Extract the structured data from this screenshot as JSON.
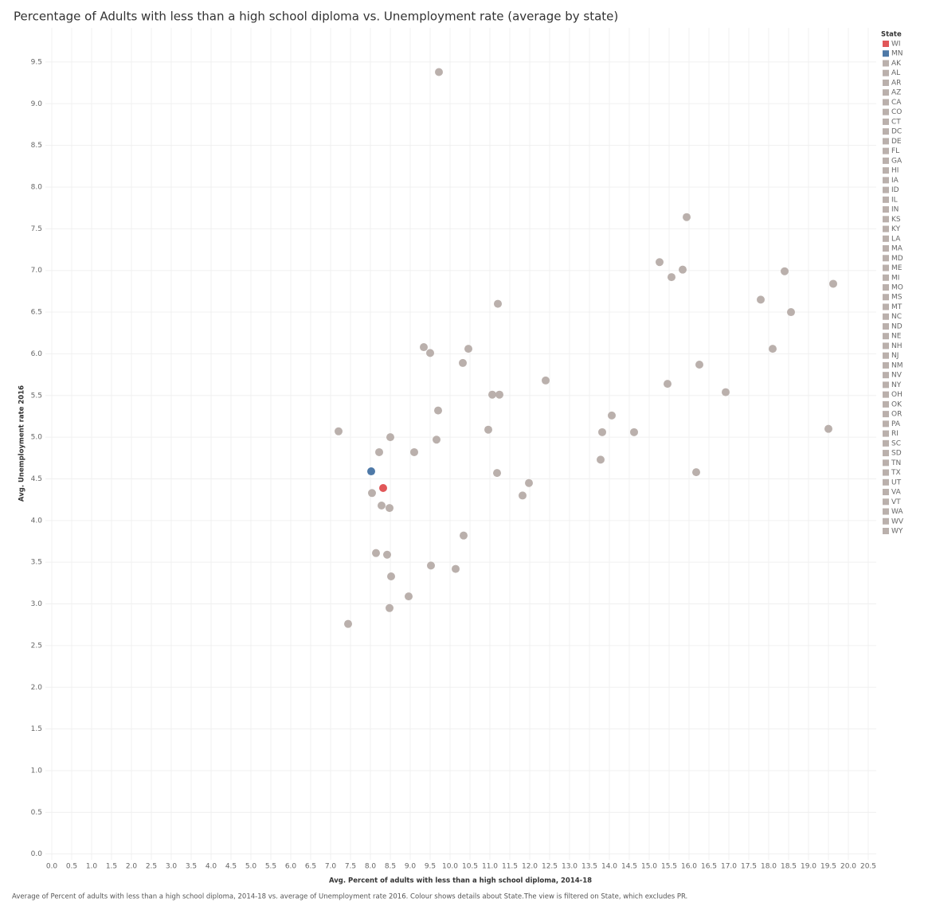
{
  "chart_data": {
    "type": "scatter",
    "title": "Percentage of Adults with less than a high school diploma vs. Unemployment rate (average by state)",
    "x_label": "Avg. Percent of adults with less than a high school diploma, 2014-18",
    "y_label": "Avg. Unemployment rate 2016",
    "footnote": "Average of Percent of adults with less than a high school diploma, 2014-18 vs. average of Unemployment rate 2016. Colour shows details about State.The view is filtered on State, which excludes PR.",
    "legend_title": "State",
    "legend_position": "right",
    "grid": true,
    "xlim": [
      -0.16,
      20.7
    ],
    "ylim": [
      -0.07,
      9.91
    ],
    "xticks": [
      {
        "value": 0,
        "label": "0.0"
      },
      0.5,
      {
        "value": 1,
        "label": "1.0"
      },
      1.5,
      {
        "value": 2,
        "label": "2.0"
      },
      2.5,
      {
        "value": 3,
        "label": "3.0"
      },
      3.5,
      {
        "value": 4,
        "label": "4.0"
      },
      4.5,
      {
        "value": 5,
        "label": "5.0"
      },
      5.5,
      {
        "value": 6,
        "label": "6.0"
      },
      6.5,
      {
        "value": 7,
        "label": "7.0"
      },
      7.5,
      {
        "value": 8,
        "label": "8.0"
      },
      8.5,
      {
        "value": 9,
        "label": "9.0"
      },
      9.5,
      {
        "value": 10,
        "label": "10.0"
      },
      10.5,
      {
        "value": 11,
        "label": "11.0"
      },
      11.5,
      {
        "value": 12,
        "label": "12.0"
      },
      12.5,
      {
        "value": 13,
        "label": "13.0"
      },
      13.5,
      {
        "value": 14,
        "label": "14.0"
      },
      14.5,
      {
        "value": 15,
        "label": "15.0"
      },
      15.5,
      {
        "value": 16,
        "label": "16.0"
      },
      16.5,
      {
        "value": 17,
        "label": "17.0"
      },
      17.5,
      {
        "value": 18,
        "label": "18.0"
      },
      18.5,
      {
        "value": 19,
        "label": "19.0"
      },
      19.5,
      {
        "value": 20,
        "label": "20.0"
      },
      20.5
    ],
    "yticks": [
      {
        "value": 0,
        "label": "0.0"
      },
      0.5,
      {
        "value": 1,
        "label": "1.0"
      },
      1.5,
      {
        "value": 2,
        "label": "2.0"
      },
      2.5,
      {
        "value": 3,
        "label": "3.0"
      },
      3.5,
      {
        "value": 4,
        "label": "4.0"
      },
      4.5,
      {
        "value": 5,
        "label": "5.0"
      },
      5.5,
      {
        "value": 6,
        "label": "6.0"
      },
      6.5,
      {
        "value": 7,
        "label": "7.0"
      },
      7.5,
      {
        "value": 8,
        "label": "8.0"
      },
      8.5,
      {
        "value": 9,
        "label": "9.0"
      },
      9.5
    ],
    "series": [
      {
        "name": "WI",
        "color": "#e15759",
        "x": [
          8.32
        ],
        "values": [
          4.39
        ]
      },
      {
        "name": "MN",
        "color": "#4e79a7",
        "x": [
          8.02
        ],
        "values": [
          4.59
        ]
      },
      {
        "name": "AK",
        "color": "#bab0ac",
        "x": [
          9.72
        ],
        "values": [
          9.38
        ]
      },
      {
        "name": "AL",
        "color": "#bab0ac",
        "x": [
          15.56
        ],
        "values": [
          6.92
        ]
      },
      {
        "name": "AR",
        "color": "#bab0ac",
        "x": [
          15.84
        ],
        "values": [
          7.01
        ]
      },
      {
        "name": "AZ",
        "color": "#bab0ac",
        "x": [
          16.92
        ],
        "values": [
          5.54
        ]
      },
      {
        "name": "CA",
        "color": "#bab0ac",
        "x": [
          18.4
        ],
        "values": [
          6.99
        ]
      },
      {
        "name": "CO",
        "color": "#bab0ac",
        "x": [
          9.7
        ],
        "values": [
          5.32
        ]
      },
      {
        "name": "CT",
        "color": "#bab0ac",
        "x": [
          7.2
        ],
        "values": [
          5.07
        ]
      },
      {
        "name": "DC",
        "color": "#bab0ac",
        "x": [
          10.46
        ],
        "values": [
          6.06
        ]
      },
      {
        "name": "DE",
        "color": "#bab0ac",
        "x": [
          9.66
        ],
        "values": [
          4.97
        ]
      },
      {
        "name": "FL",
        "color": "#bab0ac",
        "x": [
          15.46
        ],
        "values": [
          5.64
        ]
      },
      {
        "name": "GA",
        "color": "#bab0ac",
        "x": [
          16.26
        ],
        "values": [
          5.87
        ]
      },
      {
        "name": "HI",
        "color": "#bab0ac",
        "x": [
          11.18
        ],
        "values": [
          4.57
        ]
      },
      {
        "name": "IA",
        "color": "#bab0ac",
        "x": [
          8.96
        ],
        "values": [
          3.09
        ]
      },
      {
        "name": "ID",
        "color": "#bab0ac",
        "x": [
          11.82
        ],
        "values": [
          4.3
        ]
      },
      {
        "name": "IL",
        "color": "#bab0ac",
        "x": [
          10.96
        ],
        "values": [
          5.09
        ]
      },
      {
        "name": "IN",
        "color": "#bab0ac",
        "x": [
          11.98
        ],
        "values": [
          4.45
        ]
      },
      {
        "name": "KS",
        "color": "#bab0ac",
        "x": [
          9.52
        ],
        "values": [
          3.46
        ]
      },
      {
        "name": "KY",
        "color": "#bab0ac",
        "x": [
          15.26
        ],
        "values": [
          7.1
        ]
      },
      {
        "name": "LA",
        "color": "#bab0ac",
        "x": [
          15.94
        ],
        "values": [
          7.64
        ]
      },
      {
        "name": "MA",
        "color": "#bab0ac",
        "x": [
          8.14
        ],
        "values": [
          3.61
        ]
      },
      {
        "name": "MD",
        "color": "#bab0ac",
        "x": [
          8.5
        ],
        "values": [
          5.0
        ]
      },
      {
        "name": "ME",
        "color": "#bab0ac",
        "x": [
          8.22
        ],
        "values": [
          4.82
        ]
      },
      {
        "name": "MI",
        "color": "#bab0ac",
        "x": [
          9.34
        ],
        "values": [
          6.08
        ]
      },
      {
        "name": "MO",
        "color": "#bab0ac",
        "x": [
          13.82
        ],
        "values": [
          5.06
        ]
      },
      {
        "name": "MS",
        "color": "#bab0ac",
        "x": [
          18.56
        ],
        "values": [
          6.5
        ]
      },
      {
        "name": "MT",
        "color": "#bab0ac",
        "x": [
          8.28
        ],
        "values": [
          4.18
        ]
      },
      {
        "name": "NC",
        "color": "#bab0ac",
        "x": [
          14.62
        ],
        "values": [
          5.06
        ]
      },
      {
        "name": "ND",
        "color": "#bab0ac",
        "x": [
          8.48
        ],
        "values": [
          2.95
        ]
      },
      {
        "name": "NE",
        "color": "#bab0ac",
        "x": [
          8.52
        ],
        "values": [
          3.33
        ]
      },
      {
        "name": "NH",
        "color": "#bab0ac",
        "x": [
          7.44
        ],
        "values": [
          2.76
        ]
      },
      {
        "name": "NJ",
        "color": "#bab0ac",
        "x": [
          9.1
        ],
        "values": [
          4.82
        ]
      },
      {
        "name": "NM",
        "color": "#bab0ac",
        "x": [
          19.62
        ],
        "values": [
          6.84
        ]
      },
      {
        "name": "NV",
        "color": "#bab0ac",
        "x": [
          11.2
        ],
        "values": [
          6.6
        ]
      },
      {
        "name": "NY",
        "color": "#bab0ac",
        "x": [
          9.5
        ],
        "values": [
          6.01
        ]
      },
      {
        "name": "OH",
        "color": "#bab0ac",
        "x": [
          10.32
        ],
        "values": [
          5.89
        ]
      },
      {
        "name": "OK",
        "color": "#bab0ac",
        "x": [
          14.06
        ],
        "values": [
          5.26
        ]
      },
      {
        "name": "OR",
        "color": "#bab0ac",
        "x": [
          11.24
        ],
        "values": [
          5.51
        ]
      },
      {
        "name": "PA",
        "color": "#bab0ac",
        "x": [
          11.06
        ],
        "values": [
          5.51
        ]
      },
      {
        "name": "RI",
        "color": "#bab0ac",
        "x": [
          12.4
        ],
        "values": [
          5.68
        ]
      },
      {
        "name": "SC",
        "color": "#bab0ac",
        "x": [
          18.1
        ],
        "values": [
          6.06
        ]
      },
      {
        "name": "SD",
        "color": "#bab0ac",
        "x": [
          10.14
        ],
        "values": [
          3.42
        ]
      },
      {
        "name": "TN",
        "color": "#bab0ac",
        "x": [
          13.78
        ],
        "values": [
          4.73
        ]
      },
      {
        "name": "TX",
        "color": "#bab0ac",
        "x": [
          16.18
        ],
        "values": [
          4.58
        ]
      },
      {
        "name": "UT",
        "color": "#bab0ac",
        "x": [
          8.04
        ],
        "values": [
          4.33
        ]
      },
      {
        "name": "VA",
        "color": "#bab0ac",
        "x": [
          17.8
        ],
        "values": [
          6.65
        ]
      },
      {
        "name": "VT",
        "color": "#bab0ac",
        "x": [
          8.48
        ],
        "values": [
          4.15
        ]
      },
      {
        "name": "WA",
        "color": "#bab0ac",
        "x": [
          10.34
        ],
        "values": [
          3.82
        ]
      },
      {
        "name": "WV",
        "color": "#bab0ac",
        "x": [
          19.5
        ],
        "values": [
          5.1
        ]
      },
      {
        "name": "WY",
        "color": "#bab0ac",
        "x": [
          8.42
        ],
        "values": [
          3.59
        ]
      }
    ]
  }
}
